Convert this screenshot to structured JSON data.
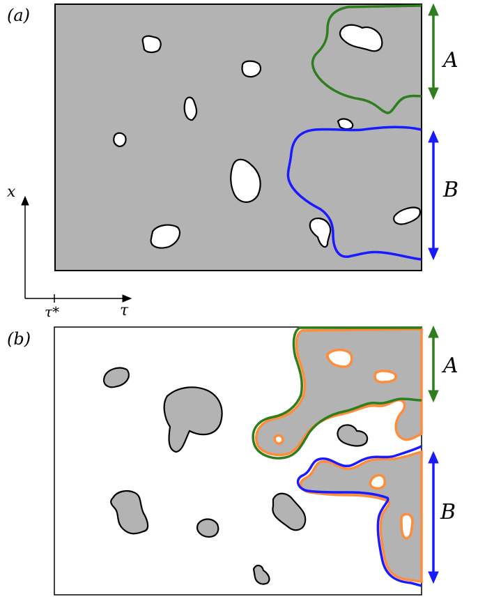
{
  "panel_a": {
    "label": "(a)",
    "region_a_label": "A",
    "region_b_label": "B"
  },
  "axes": {
    "y_label": "x",
    "x_label": "τ",
    "tick_label": "τ*"
  },
  "panel_b": {
    "label": "(b)",
    "region_a_label": "A",
    "region_b_label": "B"
  },
  "colors": {
    "grey_fill": "#b3b3b3",
    "green": "#2e7d1f",
    "blue": "#1a1aff",
    "orange": "#ff8c3a",
    "frame": "#000000"
  }
}
